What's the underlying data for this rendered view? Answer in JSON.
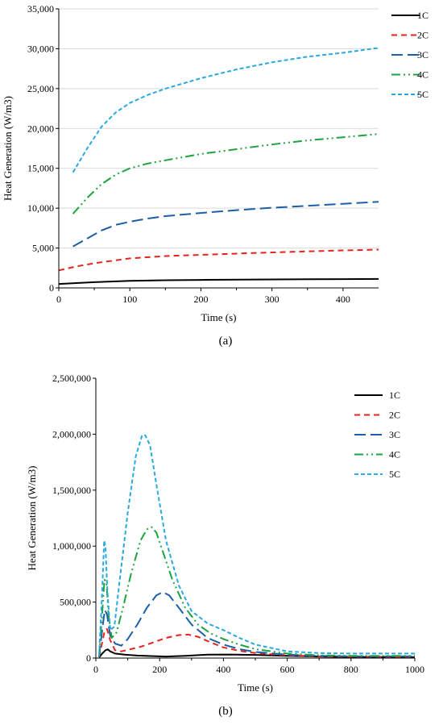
{
  "chart_data": [
    {
      "type": "line",
      "caption": "(a)",
      "xlabel": "Time (s)",
      "ylabel": "Heat Generation (W/m3)",
      "xlim": [
        0,
        450
      ],
      "ylim": [
        0,
        35000
      ],
      "xticks": [
        0,
        100,
        200,
        300,
        400
      ],
      "yticks": [
        0,
        5000,
        10000,
        15000,
        20000,
        25000,
        30000,
        35000
      ],
      "ytick_labels": [
        "0",
        "5,000",
        "10,000",
        "15,000",
        "20,000",
        "25,000",
        "30,000",
        "35,000"
      ],
      "grid": "horizontal",
      "legend": "top-right",
      "series": [
        {
          "name": "1C",
          "color": "#000000",
          "dash": "solid",
          "x": [
            0,
            50,
            100,
            150,
            200,
            250,
            300,
            350,
            400,
            450
          ],
          "y": [
            500,
            720,
            880,
            960,
            1000,
            1040,
            1060,
            1080,
            1100,
            1120
          ]
        },
        {
          "name": "2C",
          "color": "#e8231e",
          "dash": "dash",
          "x": [
            0,
            25,
            50,
            75,
            100,
            150,
            200,
            250,
            300,
            350,
            400,
            450
          ],
          "y": [
            2200,
            2700,
            3100,
            3400,
            3700,
            4000,
            4150,
            4300,
            4450,
            4580,
            4700,
            4800
          ]
        },
        {
          "name": "3C",
          "color": "#1a5fa8",
          "dash": "longdash",
          "x": [
            20,
            40,
            60,
            80,
            100,
            125,
            150,
            200,
            250,
            300,
            350,
            400,
            450
          ],
          "y": [
            5200,
            6200,
            7200,
            7900,
            8300,
            8700,
            9000,
            9400,
            9750,
            10050,
            10300,
            10550,
            10800
          ]
        },
        {
          "name": "4C",
          "color": "#1fa340",
          "dash": "dashdotdot",
          "x": [
            20,
            40,
            60,
            80,
            100,
            125,
            150,
            200,
            250,
            300,
            350,
            400,
            450
          ],
          "y": [
            9300,
            11300,
            13000,
            14200,
            15000,
            15600,
            16000,
            16800,
            17400,
            18000,
            18500,
            18900,
            19300
          ]
        },
        {
          "name": "5C",
          "color": "#29a9e0",
          "dash": "shortdash",
          "x": [
            20,
            40,
            60,
            80,
            100,
            125,
            150,
            200,
            250,
            300,
            350,
            400,
            450
          ],
          "y": [
            14500,
            17500,
            20200,
            22000,
            23200,
            24200,
            25000,
            26300,
            27400,
            28300,
            29000,
            29500,
            30100
          ]
        }
      ]
    },
    {
      "type": "line",
      "caption": "(b)",
      "xlabel": "Time (s)",
      "ylabel": "Heat Generation (W/m3)",
      "xlim": [
        0,
        1000
      ],
      "ylim": [
        0,
        2500000
      ],
      "xticks": [
        0,
        200,
        400,
        600,
        800,
        1000
      ],
      "yticks": [
        0,
        500000,
        1000000,
        1500000,
        2000000,
        2500000
      ],
      "ytick_labels": [
        "0",
        "500,000",
        "1,000,000",
        "1,500,000",
        "2,000,000",
        "2,500,000"
      ],
      "grid": "none",
      "legend": "top-right",
      "series": [
        {
          "name": "1C",
          "color": "#000000",
          "dash": "solid",
          "x": [
            10,
            20,
            30,
            38,
            45,
            60,
            90,
            130,
            180,
            220,
            280,
            350,
            420,
            500,
            600,
            700,
            800,
            1000
          ],
          "y": [
            5000,
            40000,
            70000,
            78000,
            60000,
            40000,
            30000,
            22000,
            17000,
            14000,
            20000,
            30000,
            32000,
            28000,
            20000,
            14000,
            10000,
            7000
          ]
        },
        {
          "name": "2C",
          "color": "#e8231e",
          "dash": "dash",
          "x": [
            10,
            20,
            28,
            35,
            45,
            60,
            80,
            110,
            140,
            180,
            220,
            260,
            290,
            320,
            360,
            400,
            450,
            500,
            600,
            700,
            800,
            1000
          ],
          "y": [
            10000,
            140000,
            250000,
            260000,
            160000,
            70000,
            60000,
            80000,
            100000,
            140000,
            180000,
            205000,
            210000,
            190000,
            140000,
            95000,
            65000,
            45000,
            25000,
            15000,
            12000,
            10000
          ]
        },
        {
          "name": "3C",
          "color": "#1a5fa8",
          "dash": "longdash",
          "x": [
            10,
            20,
            28,
            35,
            45,
            60,
            80,
            100,
            130,
            160,
            190,
            210,
            230,
            260,
            300,
            350,
            400,
            450,
            500,
            600,
            700,
            800,
            1000
          ],
          "y": [
            10000,
            250000,
            430000,
            390000,
            200000,
            130000,
            110000,
            170000,
            300000,
            450000,
            560000,
            590000,
            560000,
            450000,
            300000,
            180000,
            120000,
            80000,
            55000,
            30000,
            20000,
            15000,
            15000
          ]
        },
        {
          "name": "4C",
          "color": "#1fa340",
          "dash": "dashdotdot",
          "x": [
            10,
            20,
            27,
            33,
            40,
            50,
            65,
            85,
            110,
            140,
            160,
            175,
            190,
            210,
            240,
            280,
            320,
            360,
            400,
            450,
            500,
            600,
            700,
            800,
            1000
          ],
          "y": [
            10000,
            400000,
            700000,
            680000,
            380000,
            180000,
            230000,
            450000,
            750000,
            1050000,
            1150000,
            1170000,
            1120000,
            950000,
            700000,
            450000,
            300000,
            220000,
            170000,
            120000,
            80000,
            40000,
            25000,
            20000,
            20000
          ]
        },
        {
          "name": "5C",
          "color": "#29a9e0",
          "dash": "shortdash",
          "x": [
            10,
            20,
            26,
            30,
            36,
            45,
            58,
            75,
            100,
            125,
            145,
            155,
            170,
            190,
            220,
            260,
            300,
            350,
            400,
            450,
            500,
            600,
            700,
            800,
            1000
          ],
          "y": [
            20000,
            600000,
            1050000,
            1000000,
            600000,
            250000,
            280000,
            700000,
            1300000,
            1800000,
            1990000,
            1990000,
            1900000,
            1550000,
            1050000,
            650000,
            420000,
            310000,
            250000,
            180000,
            120000,
            60000,
            45000,
            40000,
            40000
          ]
        }
      ]
    }
  ]
}
